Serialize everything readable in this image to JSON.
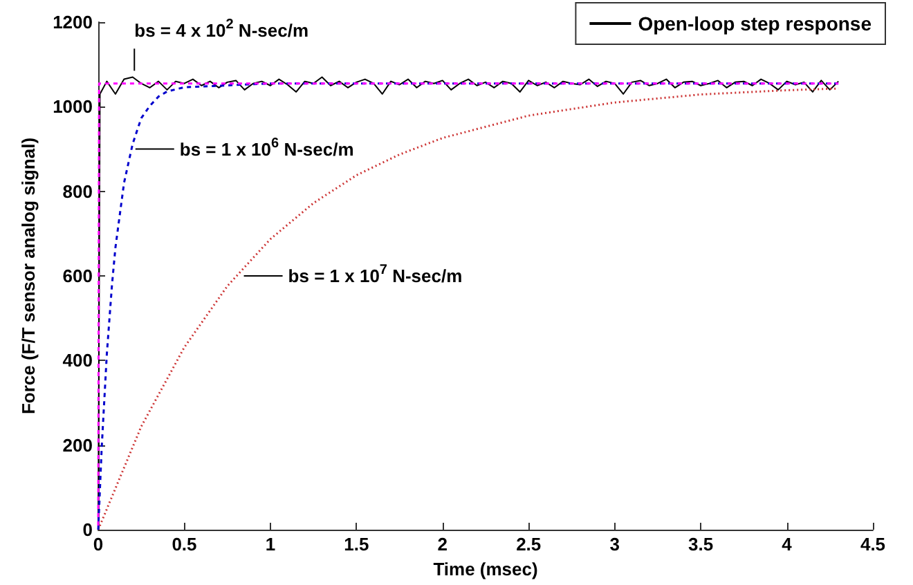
{
  "chart_data": {
    "type": "line",
    "xlabel": "Time (msec)",
    "ylabel": "Force (F/T sensor analog signal)",
    "xlim": [
      0,
      4.5
    ],
    "xticks": [
      0,
      0.5,
      1,
      1.5,
      2,
      2.5,
      3,
      3.5,
      4,
      4.5
    ],
    "ylim": [
      0,
      1200
    ],
    "yticks": [
      0,
      200,
      400,
      600,
      800,
      1000,
      1200
    ],
    "grid": false,
    "legend": "top right",
    "marker": "none",
    "series": [
      {
        "name": "Open-loop step response",
        "color": "#000000",
        "line_style": "solid",
        "x": [
          0,
          0.01,
          0.05,
          0.1,
          0.15,
          0.2,
          0.25,
          0.3,
          0.35,
          0.4,
          0.45,
          0.5,
          0.55,
          0.6,
          0.65,
          0.7,
          0.75,
          0.8,
          0.85,
          0.9,
          0.95,
          1,
          1.05,
          1.1,
          1.15,
          1.2,
          1.25,
          1.3,
          1.35,
          1.4,
          1.45,
          1.5,
          1.55,
          1.6,
          1.65,
          1.7,
          1.75,
          1.8,
          1.85,
          1.9,
          1.95,
          2,
          2.05,
          2.1,
          2.15,
          2.2,
          2.25,
          2.3,
          2.35,
          2.4,
          2.45,
          2.5,
          2.55,
          2.6,
          2.65,
          2.7,
          2.75,
          2.8,
          2.85,
          2.9,
          2.95,
          3,
          3.05,
          3.1,
          3.15,
          3.2,
          3.25,
          3.3,
          3.35,
          3.4,
          3.45,
          3.5,
          3.55,
          3.6,
          3.65,
          3.7,
          3.75,
          3.8,
          3.85,
          3.9,
          3.95,
          4,
          4.05,
          4.1,
          4.15,
          4.2,
          4.25,
          4.3
        ],
        "values": [
          0,
          1030,
          1060,
          1030,
          1065,
          1070,
          1055,
          1045,
          1060,
          1040,
          1060,
          1055,
          1065,
          1050,
          1060,
          1045,
          1058,
          1062,
          1040,
          1055,
          1060,
          1050,
          1065,
          1052,
          1035,
          1060,
          1055,
          1070,
          1050,
          1060,
          1045,
          1058,
          1065,
          1055,
          1030,
          1060,
          1052,
          1065,
          1045,
          1060,
          1055,
          1062,
          1040,
          1055,
          1065,
          1050,
          1058,
          1045,
          1060,
          1055,
          1035,
          1062,
          1050,
          1058,
          1045,
          1060,
          1055,
          1052,
          1065,
          1048,
          1060,
          1055,
          1030,
          1058,
          1062,
          1050,
          1055,
          1065,
          1045,
          1058,
          1060,
          1050,
          1055,
          1062,
          1045,
          1058,
          1060,
          1050,
          1065,
          1055,
          1040,
          1060,
          1052,
          1058,
          1035,
          1062,
          1040,
          1060
        ]
      },
      {
        "color": "#ff00ff",
        "line_style": "dashed",
        "x": [
          0,
          0.005,
          4.3
        ],
        "values": [
          0,
          1055,
          1055
        ]
      },
      {
        "color": "#0000cc",
        "line_style": "dashed",
        "x": [
          0,
          0.02,
          0.05,
          0.08,
          0.1,
          0.15,
          0.2,
          0.25,
          0.3,
          0.35,
          0.4,
          0.5,
          1,
          2,
          3,
          4.3
        ],
        "values": [
          0,
          192,
          415,
          579,
          667,
          820,
          912,
          973,
          1002,
          1024,
          1036,
          1046,
          1055,
          1055,
          1055,
          1055
        ]
      },
      {
        "color": "#cc3333",
        "line_style": "dotted",
        "x": [
          0,
          0.25,
          0.5,
          0.75,
          1,
          1.25,
          1.5,
          1.75,
          2,
          2.5,
          3,
          3.5,
          4,
          4.3
        ],
        "values": [
          0,
          244,
          431,
          576,
          687,
          772,
          838,
          887,
          926,
          979,
          1010,
          1029,
          1039,
          1043
        ]
      }
    ],
    "annotations": [
      {
        "text": "bs = 4 x 10$^{2}$ N-sec/m",
        "x": 0.21,
        "y": 1085
      },
      {
        "text": "bs = 1 x 10$^{6}$ N-sec/m",
        "x": 0.2,
        "y": 900
      },
      {
        "text": "bs = 1 x 10$^{7}$ N-sec/m",
        "x": 0.83,
        "y": 600
      }
    ]
  }
}
